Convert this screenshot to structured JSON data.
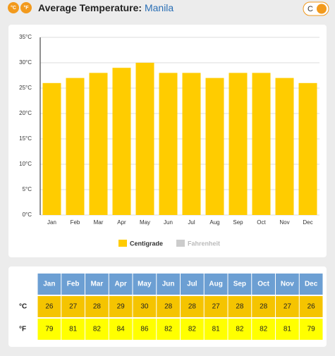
{
  "header": {
    "units": [
      "°C",
      "°F"
    ],
    "title": "Average Temperature:",
    "city": "Manila",
    "toggle": "C"
  },
  "chart_data": {
    "type": "bar",
    "categories": [
      "Jan",
      "Feb",
      "Mar",
      "Apr",
      "May",
      "Jun",
      "Jul",
      "Aug",
      "Sep",
      "Oct",
      "Nov",
      "Dec"
    ],
    "series": [
      {
        "name": "Centigrade",
        "color": "#ffcc00",
        "values": [
          26,
          27,
          28,
          29,
          30,
          28,
          28,
          27,
          28,
          28,
          27,
          26
        ]
      },
      {
        "name": "Fahrenheit",
        "color": "#cccccc",
        "visible": false
      }
    ],
    "ylim": [
      0,
      35
    ],
    "yticks": [
      {
        "value": 0,
        "label": "0°C"
      },
      {
        "value": 5,
        "label": "5°C"
      },
      {
        "value": 10,
        "label": "10°C"
      },
      {
        "value": 15,
        "label": "15°C"
      },
      {
        "value": 20,
        "label": "20°C"
      },
      {
        "value": 25,
        "label": "25°C"
      },
      {
        "value": 30,
        "label": "30°C"
      },
      {
        "value": 35,
        "label": "35°C"
      }
    ],
    "grid": true
  },
  "table": {
    "columns": [
      "Jan",
      "Feb",
      "Mar",
      "Apr",
      "May",
      "Jun",
      "Jul",
      "Aug",
      "Sep",
      "Oct",
      "Nov",
      "Dec"
    ],
    "rows": [
      {
        "label": "°C",
        "color": "#f5c400",
        "values": [
          26,
          27,
          28,
          29,
          30,
          28,
          28,
          27,
          28,
          28,
          27,
          26
        ]
      },
      {
        "label": "°F",
        "color": "#ffff00",
        "values": [
          79,
          81,
          82,
          84,
          86,
          82,
          82,
          81,
          82,
          82,
          81,
          79
        ]
      }
    ]
  }
}
